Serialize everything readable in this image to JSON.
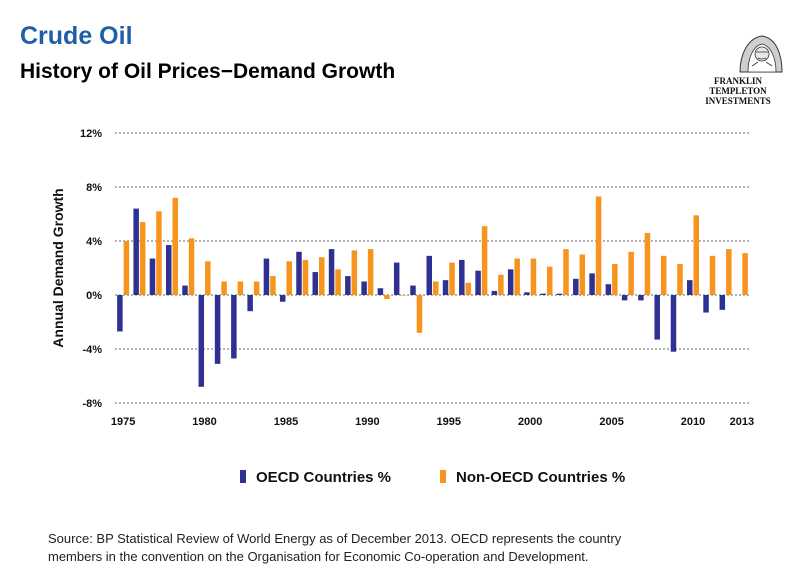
{
  "header": {
    "title": "Crude Oil",
    "subtitle": "History of Oil Prices−Demand  Growth",
    "brand_line1": "FRANKLIN TEMPLETON",
    "brand_line2": "INVESTMENTS",
    "brand_icon": "benjamin-franklin-portrait-icon"
  },
  "legend": {
    "oecd_label": "OECD Countries %",
    "non_oecd_label": "Non-OECD Countries %"
  },
  "footer": {
    "source_line1": "Source: BP Statistical  Review of World Energy as of December 2013. OECD represents the country",
    "source_line2": "members in the convention on the Organisation for Economic Co-operation and Development."
  },
  "chart_data": {
    "type": "bar",
    "title": "History of Oil Prices−Demand  Growth",
    "ylabel": "Annual Demand Growth",
    "xlabel": "",
    "ylim": [
      -8,
      12
    ],
    "yticks": [
      -8,
      -4,
      0,
      4,
      8,
      12
    ],
    "ytick_labels": [
      "-8%",
      "-4%",
      "0%",
      "4%",
      "8%",
      "12%"
    ],
    "xtick_labels": [
      "1975",
      "1980",
      "1985",
      "1990",
      "1995",
      "2000",
      "2005",
      "2010",
      "2013"
    ],
    "grid": "horizontal dashed",
    "legend_position": "bottom",
    "colors": {
      "oecd": "#2e3192",
      "non_oecd": "#f7941d"
    },
    "categories": [
      1975,
      1976,
      1977,
      1978,
      1979,
      1980,
      1981,
      1982,
      1983,
      1984,
      1985,
      1986,
      1987,
      1988,
      1989,
      1990,
      1991,
      1992,
      1993,
      1994,
      1995,
      1996,
      1997,
      1998,
      1999,
      2000,
      2001,
      2002,
      2003,
      2004,
      2005,
      2006,
      2007,
      2008,
      2009,
      2010,
      2011,
      2012,
      2013
    ],
    "series": [
      {
        "name": "OECD Countries %",
        "values": [
          -2.7,
          6.4,
          2.7,
          3.7,
          0.7,
          -6.8,
          -5.1,
          -4.7,
          -1.2,
          2.7,
          -0.5,
          3.2,
          1.7,
          3.4,
          1.4,
          1.0,
          0.5,
          2.4,
          0.7,
          2.9,
          1.1,
          2.6,
          1.8,
          0.3,
          1.9,
          0.2,
          0.1,
          0.1,
          1.2,
          1.6,
          0.8,
          -0.4,
          -0.4,
          -3.3,
          -4.2,
          1.1,
          -1.3,
          -1.1,
          null
        ]
      },
      {
        "name": "Non-OECD Countries %",
        "values": [
          4.0,
          5.4,
          6.2,
          7.2,
          4.2,
          2.5,
          1.0,
          1.0,
          1.0,
          1.4,
          2.5,
          2.6,
          2.8,
          1.9,
          3.3,
          3.4,
          -0.3,
          0.0,
          -2.8,
          1.0,
          2.4,
          0.9,
          5.1,
          1.5,
          2.7,
          2.7,
          2.1,
          3.4,
          3.0,
          7.3,
          2.3,
          3.2,
          4.6,
          2.9,
          2.3,
          5.9,
          2.9,
          3.4,
          3.1
        ]
      }
    ]
  }
}
